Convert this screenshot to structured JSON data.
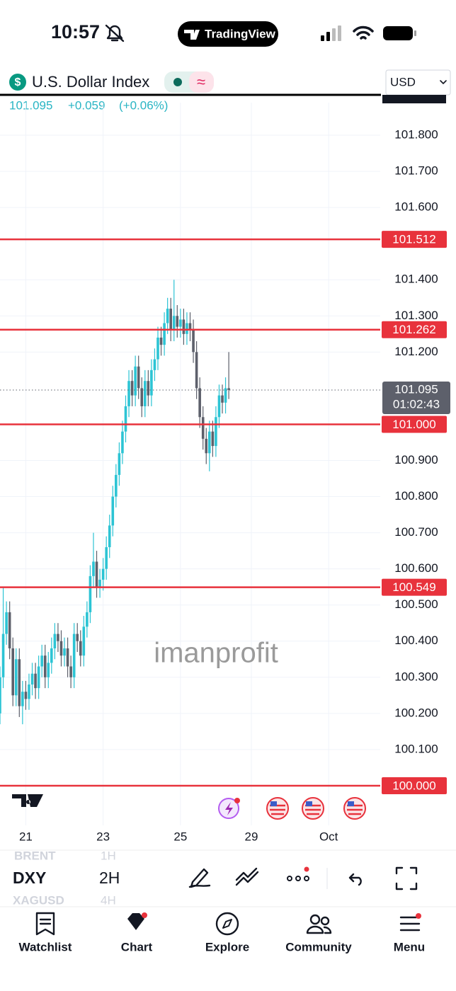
{
  "status_bar": {
    "time": "10:57",
    "app": "TradingView"
  },
  "header": {
    "icon": "$",
    "symbol_name": "U.S. Dollar Index",
    "currency": "USD",
    "price": "101.095",
    "change": "+0.059",
    "change_percent": "(+0.06%)"
  },
  "chart_data": {
    "type": "candlestick",
    "watermark": "imanprofit",
    "up_color": "#2cc4d4",
    "down_color": "#5d606b",
    "level_color": "#e8323c",
    "grid": true,
    "open": [
      100.2,
      100.3,
      100.42,
      100.48,
      100.38,
      100.25,
      100.35,
      100.22,
      100.26,
      100.24,
      100.28,
      100.31,
      100.27,
      100.33,
      100.36,
      100.3,
      100.34,
      100.38,
      100.42,
      100.4,
      100.36,
      100.38,
      100.33,
      100.3,
      100.42,
      100.4,
      100.36,
      100.44,
      100.48,
      100.58,
      100.62,
      100.55,
      100.57,
      100.6,
      100.66,
      100.72,
      100.8,
      100.86,
      100.92,
      100.98,
      101.05,
      101.12,
      101.08,
      101.16,
      101.1,
      101.05,
      101.12,
      101.08,
      101.15,
      101.18,
      101.24,
      101.22,
      101.28,
      101.32,
      101.26,
      101.3,
      101.27,
      101.29,
      101.25,
      101.28,
      101.26,
      101.2,
      101.1,
      101.02,
      100.96,
      100.92,
      100.98,
      100.94,
      101.02,
      101.08,
      101.06,
      101.1
    ],
    "high": [
      100.33,
      100.55,
      100.51,
      100.51,
      100.41,
      100.38,
      100.38,
      100.29,
      100.29,
      100.31,
      100.34,
      100.34,
      100.36,
      100.39,
      100.39,
      100.37,
      100.41,
      100.45,
      100.45,
      100.43,
      100.41,
      100.41,
      100.36,
      100.45,
      100.45,
      100.43,
      100.47,
      100.51,
      100.61,
      100.7,
      100.65,
      100.6,
      100.63,
      100.69,
      100.75,
      100.83,
      100.89,
      100.95,
      101.01,
      101.08,
      101.15,
      101.15,
      101.19,
      101.19,
      101.13,
      101.15,
      101.15,
      101.18,
      101.21,
      101.27,
      101.27,
      101.31,
      101.35,
      101.35,
      101.4,
      101.33,
      101.32,
      101.32,
      101.31,
      101.31,
      101.29,
      101.23,
      101.13,
      101.05,
      100.99,
      101.01,
      101.01,
      101.05,
      101.11,
      101.11,
      101.13,
      101.2
    ],
    "low": [
      100.17,
      100.27,
      100.39,
      100.35,
      100.22,
      100.22,
      100.19,
      100.17,
      100.21,
      100.21,
      100.25,
      100.24,
      100.24,
      100.3,
      100.27,
      100.27,
      100.31,
      100.35,
      100.37,
      100.33,
      100.33,
      100.3,
      100.27,
      100.27,
      100.37,
      100.33,
      100.33,
      100.41,
      100.45,
      100.55,
      100.52,
      100.52,
      100.54,
      100.57,
      100.63,
      100.69,
      100.77,
      100.83,
      100.89,
      100.95,
      101.02,
      101.05,
      101.05,
      101.07,
      101.02,
      101.02,
      101.05,
      101.05,
      101.12,
      101.15,
      101.19,
      101.19,
      101.25,
      101.23,
      101.23,
      101.24,
      101.24,
      101.22,
      101.22,
      101.23,
      101.17,
      101.07,
      100.99,
      100.93,
      100.89,
      100.87,
      100.91,
      100.91,
      100.99,
      101.03,
      101.03,
      101.07
    ],
    "close": [
      100.3,
      100.42,
      100.48,
      100.38,
      100.25,
      100.35,
      100.22,
      100.26,
      100.24,
      100.28,
      100.31,
      100.27,
      100.33,
      100.36,
      100.3,
      100.34,
      100.38,
      100.42,
      100.4,
      100.36,
      100.38,
      100.33,
      100.3,
      100.42,
      100.4,
      100.36,
      100.44,
      100.48,
      100.58,
      100.62,
      100.55,
      100.57,
      100.6,
      100.66,
      100.72,
      100.8,
      100.86,
      100.92,
      100.98,
      101.05,
      101.12,
      101.08,
      101.16,
      101.1,
      101.05,
      101.12,
      101.08,
      101.15,
      101.18,
      101.24,
      101.22,
      101.28,
      101.32,
      101.26,
      101.3,
      101.27,
      101.29,
      101.25,
      101.28,
      101.26,
      101.2,
      101.1,
      101.02,
      100.96,
      100.92,
      100.98,
      100.94,
      101.02,
      101.08,
      101.06,
      101.1,
      101.095
    ],
    "xlim": [
      0,
      118
    ],
    "xticks": [
      {
        "value": 8,
        "label": "21"
      },
      {
        "value": 32,
        "label": "23"
      },
      {
        "value": 56,
        "label": "25"
      },
      {
        "value": 78,
        "label": "29"
      },
      {
        "value": 102,
        "label": "Oct"
      }
    ],
    "ylim": [
      99.9,
      101.9
    ],
    "yticks": [
      {
        "value": 100.1,
        "label": "100.100"
      },
      {
        "value": 100.2,
        "label": "100.200"
      },
      {
        "value": 100.3,
        "label": "100.300"
      },
      {
        "value": 100.4,
        "label": "100.400"
      },
      {
        "value": 100.5,
        "label": "100.500"
      },
      {
        "value": 100.6,
        "label": "100.600"
      },
      {
        "value": 100.7,
        "label": "100.700"
      },
      {
        "value": 100.8,
        "label": "100.800"
      },
      {
        "value": 100.9,
        "label": "100.900"
      },
      {
        "value": 101.2,
        "label": "101.200"
      },
      {
        "value": 101.3,
        "label": "101.300"
      },
      {
        "value": 101.4,
        "label": "101.400"
      },
      {
        "value": 101.6,
        "label": "101.600"
      },
      {
        "value": 101.7,
        "label": "101.700"
      },
      {
        "value": 101.8,
        "label": "101.800"
      }
    ],
    "price_levels": [
      101.512,
      101.262,
      {
        "value": 101,
        "label": "101.000"
      },
      100.549,
      {
        "value": 100,
        "label": "100.000"
      }
    ],
    "current_price": 101.095,
    "countdown": "01:02:43"
  },
  "toolbar": {
    "symbol": "DXY",
    "interval": "2H",
    "faded_symbols": [
      "BRENT",
      "XAGUSD"
    ],
    "faded_intervals": [
      "1H",
      "4H"
    ]
  },
  "tab_bar": [
    "Watchlist",
    "Chart",
    "Explore",
    "Community",
    "Menu"
  ]
}
